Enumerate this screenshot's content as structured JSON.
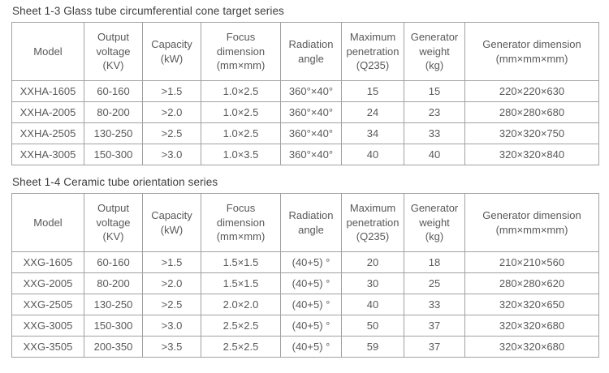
{
  "colors": {
    "background": "#ffffff",
    "table_border": "#a1a1a1",
    "table_text": "#595959",
    "title_text": "#3d3d3d"
  },
  "tables": [
    {
      "title": "Sheet 1-3 Glass tube circumferential cone target series",
      "headers": [
        {
          "lines": [
            "Model"
          ]
        },
        {
          "lines": [
            "Output",
            "voltage",
            "(KV)"
          ]
        },
        {
          "lines": [
            "Capacity",
            "(kW)"
          ]
        },
        {
          "lines": [
            "Focus",
            "dimension",
            "(mm×mm)"
          ]
        },
        {
          "lines": [
            "Radiation",
            "angle"
          ]
        },
        {
          "lines": [
            "Maximum",
            "penetration",
            "(Q235)"
          ]
        },
        {
          "lines": [
            "Generator",
            "weight",
            "(kg)"
          ]
        },
        {
          "lines": [
            "Generator dimension",
            "(mm×mm×mm)"
          ]
        }
      ],
      "rows": [
        [
          "XXHA-1605",
          "60-160",
          ">1.5",
          "1.0×2.5",
          "360°×40°",
          "15",
          "15",
          "220×220×630"
        ],
        [
          "XXHA-2005",
          "80-200",
          ">2.0",
          "1.0×2.5",
          "360°×40°",
          "24",
          "23",
          "280×280×680"
        ],
        [
          "XXHA-2505",
          "130-250",
          ">2.5",
          "1.0×2.5",
          "360°×40°",
          "34",
          "33",
          "320×320×750"
        ],
        [
          "XXHA-3005",
          "150-300",
          ">3.0",
          "1.0×3.5",
          "360°×40°",
          "40",
          "40",
          "320×320×840"
        ]
      ]
    },
    {
      "title": "Sheet 1-4 Ceramic tube orientation series",
      "headers": [
        {
          "lines": [
            "Model"
          ]
        },
        {
          "lines": [
            "Output",
            "voltage",
            "(KV)"
          ]
        },
        {
          "lines": [
            "Capacity",
            "(kW)"
          ]
        },
        {
          "lines": [
            "Focus",
            "dimension",
            "(mm×mm)"
          ]
        },
        {
          "lines": [
            "Radiation",
            "angle"
          ]
        },
        {
          "lines": [
            "Maximum",
            "penetration",
            "(Q235)"
          ]
        },
        {
          "lines": [
            "Generator",
            "weight",
            "(kg)"
          ]
        },
        {
          "lines": [
            "Generator dimension",
            "(mm×mm×mm)"
          ]
        }
      ],
      "rows": [
        [
          "XXG-1605",
          "60-160",
          ">1.5",
          "1.5×1.5",
          "(40+5) °",
          "20",
          "18",
          "210×210×560"
        ],
        [
          "XXG-2005",
          "80-200",
          ">2.0",
          "1.5×1.5",
          "(40+5) °",
          "30",
          "25",
          "280×280×620"
        ],
        [
          "XXG-2505",
          "130-250",
          ">2.5",
          "2.0×2.0",
          "(40+5) °",
          "40",
          "33",
          "320×320×650"
        ],
        [
          "XXG-3005",
          "150-300",
          ">3.0",
          "2.5×2.5",
          "(40+5) °",
          "50",
          "37",
          "320×320×680"
        ],
        [
          "XXG-3505",
          "200-350",
          ">3.5",
          "2.5×2.5",
          "(40+5) °",
          "59",
          "37",
          "320×320×680"
        ]
      ]
    }
  ]
}
